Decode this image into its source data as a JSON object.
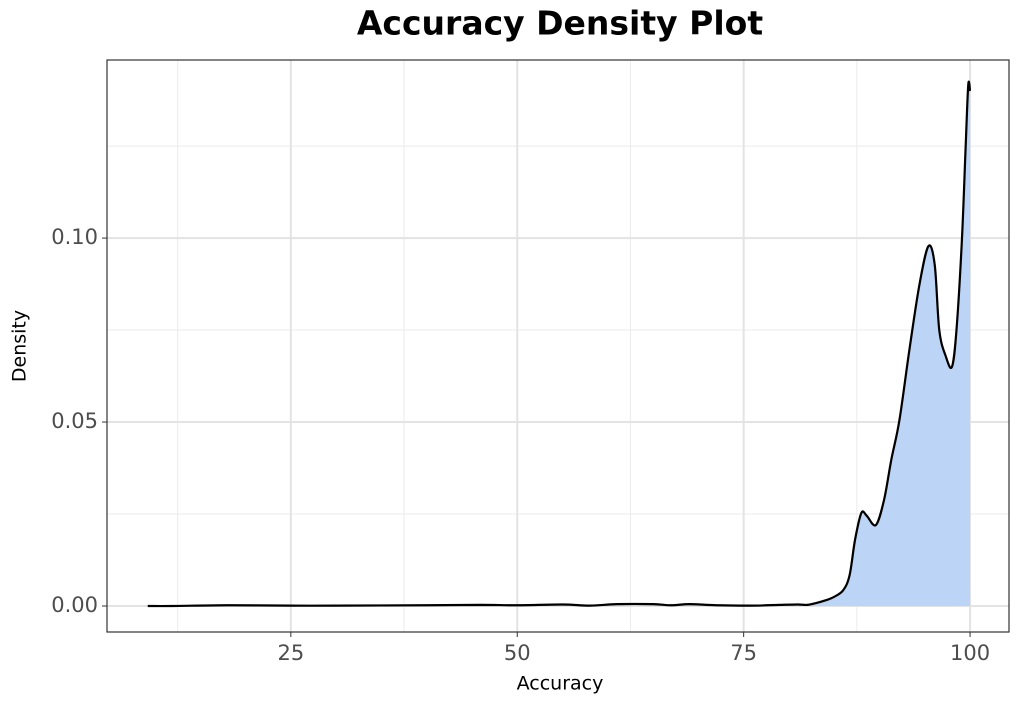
{
  "chart_data": {
    "type": "density",
    "title": "Accuracy Density Plot",
    "x_label": "Accuracy",
    "y_label": "Density",
    "x": [
      9.2,
      12,
      18,
      25,
      30,
      40,
      46,
      50,
      55,
      58,
      61,
      65,
      67,
      69,
      72,
      76,
      79,
      81,
      82,
      83,
      84,
      85,
      86,
      86.7,
      87.3,
      88.0,
      88.6,
      89.6,
      90.5,
      91.3,
      92.2,
      93.3,
      94.4,
      95.4,
      96.1,
      96.6,
      97.3,
      98.0,
      98.5,
      99.1,
      99.5,
      99.8,
      100
    ],
    "values": [
      0.0,
      0.0,
      0.0002,
      0.0001,
      0.0001,
      0.0002,
      0.0003,
      0.0002,
      0.0004,
      0.0001,
      0.0005,
      0.0005,
      0.0002,
      0.0005,
      0.0002,
      0.0001,
      0.0003,
      0.0004,
      0.0003,
      0.0008,
      0.0015,
      0.0025,
      0.0043,
      0.0084,
      0.018,
      0.0253,
      0.0245,
      0.022,
      0.0288,
      0.0397,
      0.0505,
      0.0696,
      0.0872,
      0.0978,
      0.0927,
      0.075,
      0.068,
      0.065,
      0.075,
      0.0995,
      0.124,
      0.1416,
      0.14
    ],
    "fill_color": "#bcd4f6",
    "line_color": "#000000",
    "xlim": [
      4.7,
      104.3
    ],
    "ylim": [
      -0.00707,
      0.1484
    ],
    "xticks": [
      25,
      50,
      75,
      100
    ],
    "yticks": [
      {
        "value": 0,
        "label": "0.00"
      },
      {
        "value": 0.05,
        "label": "0.05"
      },
      {
        "value": 0.1,
        "label": "0.10"
      }
    ],
    "x_minor_grid": [
      12.5,
      37.5,
      62.5,
      87.5
    ],
    "y_minor_grid": [
      0.025,
      0.075,
      0.125
    ],
    "grid": true
  }
}
